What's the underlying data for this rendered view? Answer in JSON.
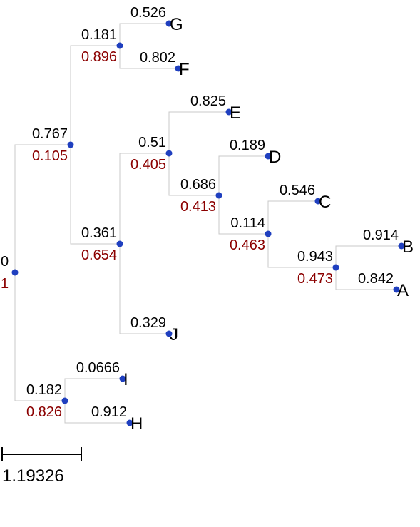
{
  "colors": {
    "branch": "#c8c8c8",
    "node": "#1f3fbf",
    "length_label": "#000000",
    "support_label": "#8b0000"
  },
  "tree": {
    "nodes": [
      {
        "id": "root",
        "length": "0",
        "support": "1"
      },
      {
        "id": "n1",
        "parent": "root",
        "length": "0.767",
        "support": "0.105"
      },
      {
        "id": "n2",
        "parent": "n1",
        "length": "0.181",
        "support": "0.896"
      },
      {
        "id": "G",
        "parent": "n2",
        "length": "0.526",
        "leaf": "G"
      },
      {
        "id": "F",
        "parent": "n2",
        "length": "0.802",
        "leaf": "F"
      },
      {
        "id": "n3",
        "parent": "n1",
        "length": "0.361",
        "support": "0.654"
      },
      {
        "id": "n4",
        "parent": "n3",
        "length": "0.51",
        "support": "0.405"
      },
      {
        "id": "E",
        "parent": "n4",
        "length": "0.825",
        "leaf": "E"
      },
      {
        "id": "n5",
        "parent": "n4",
        "length": "0.686",
        "support": "0.413"
      },
      {
        "id": "D",
        "parent": "n5",
        "length": "0.189",
        "leaf": "D"
      },
      {
        "id": "n6",
        "parent": "n5",
        "length": "0.114",
        "support": "0.463"
      },
      {
        "id": "C",
        "parent": "n6",
        "length": "0.546",
        "leaf": "C"
      },
      {
        "id": "n7",
        "parent": "n6",
        "length": "0.943",
        "support": "0.473"
      },
      {
        "id": "B",
        "parent": "n7",
        "length": "0.914",
        "leaf": "B"
      },
      {
        "id": "A",
        "parent": "n7",
        "length": "0.842",
        "leaf": "A"
      },
      {
        "id": "J",
        "parent": "n3",
        "length": "0.329",
        "leaf": "J"
      },
      {
        "id": "n8",
        "parent": "root",
        "length": "0.182",
        "support": "0.826"
      },
      {
        "id": "I",
        "parent": "n8",
        "length": "0.0666",
        "leaf": "I"
      },
      {
        "id": "H",
        "parent": "n8",
        "length": "0.912",
        "leaf": "H"
      }
    ]
  },
  "scale_bar": {
    "label": "1.19326"
  }
}
